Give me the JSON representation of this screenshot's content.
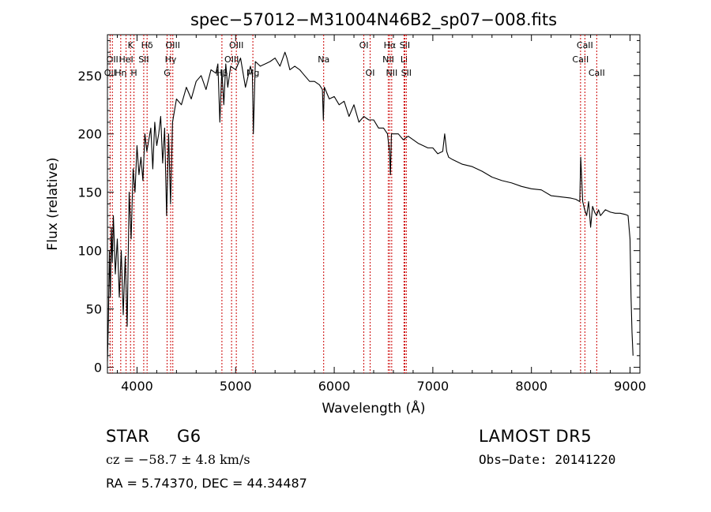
{
  "chart_data": {
    "type": "line",
    "title": "spec−57012−M31004N46B2_sp07−008.fits",
    "xlabel": "Wavelength (Å)",
    "ylabel": "Flux (relative)",
    "xlim": [
      3700,
      9100
    ],
    "ylim": [
      -5,
      285
    ],
    "xticks": [
      4000,
      5000,
      6000,
      7000,
      8000,
      9000
    ],
    "yticks": [
      0,
      50,
      100,
      150,
      200,
      250
    ],
    "grid": false,
    "series": [
      {
        "values_x": [
          3700,
          3710,
          3720,
          3730,
          3740,
          3750,
          3760,
          3780,
          3800,
          3820,
          3840,
          3860,
          3880,
          3900,
          3920,
          3940,
          3960,
          3980,
          4000,
          4020,
          4040,
          4060,
          4080,
          4100,
          4120,
          4140,
          4160,
          4180,
          4200,
          4220,
          4240,
          4260,
          4280,
          4300,
          4320,
          4340,
          4360,
          4380,
          4400,
          4450,
          4500,
          4550,
          4600,
          4650,
          4700,
          4750,
          4800,
          4820,
          4840,
          4860,
          4880,
          4900,
          4920,
          4950,
          5000,
          5050,
          5100,
          5150,
          5170,
          5180,
          5200,
          5250,
          5300,
          5350,
          5400,
          5450,
          5500,
          5520,
          5550,
          5600,
          5650,
          5700,
          5750,
          5800,
          5850,
          5880,
          5890,
          5900,
          5950,
          6000,
          6050,
          6100,
          6150,
          6200,
          6250,
          6300,
          6350,
          6400,
          6450,
          6500,
          6540,
          6560,
          6570,
          6580,
          6600,
          6650,
          6700,
          6750,
          6800,
          6850,
          6900,
          6950,
          7000,
          7050,
          7100,
          7120,
          7140,
          7160,
          7200,
          7250,
          7300,
          7400,
          7500,
          7600,
          7700,
          7800,
          7900,
          8000,
          8100,
          8200,
          8300,
          8400,
          8450,
          8490,
          8500,
          8520,
          8540,
          8560,
          8580,
          8600,
          8620,
          8640,
          8660,
          8680,
          8700,
          8750,
          8800,
          8850,
          8900,
          8950,
          8980,
          9000,
          9010,
          9020,
          9030
        ],
        "values_y": [
          5,
          40,
          100,
          60,
          120,
          90,
          130,
          80,
          110,
          60,
          100,
          45,
          95,
          35,
          150,
          110,
          170,
          150,
          190,
          165,
          180,
          160,
          200,
          185,
          195,
          205,
          170,
          210,
          190,
          200,
          215,
          175,
          205,
          130,
          200,
          140,
          210,
          220,
          230,
          225,
          240,
          230,
          245,
          250,
          238,
          255,
          252,
          260,
          210,
          255,
          225,
          260,
          240,
          258,
          255,
          265,
          240,
          258,
          250,
          200,
          262,
          258,
          260,
          262,
          265,
          258,
          270,
          265,
          255,
          258,
          255,
          250,
          245,
          245,
          242,
          238,
          212,
          240,
          230,
          232,
          225,
          228,
          215,
          225,
          210,
          215,
          212,
          212,
          205,
          205,
          200,
          185,
          165,
          200,
          200,
          200,
          195,
          198,
          195,
          192,
          190,
          188,
          188,
          183,
          185,
          200,
          185,
          180,
          178,
          176,
          174,
          172,
          168,
          163,
          160,
          158,
          155,
          153,
          152,
          147,
          146,
          145,
          144,
          142,
          180,
          142,
          135,
          130,
          142,
          120,
          138,
          133,
          130,
          135,
          130,
          135,
          133,
          132,
          132,
          131,
          130,
          110,
          60,
          30,
          10
        ],
        "name": ""
      }
    ],
    "annotations": [
      {
        "line": 3727,
        "label": "OII",
        "row": 2
      },
      {
        "line": 3750,
        "label": "OII",
        "row": 1
      },
      {
        "line": 3835,
        "label": "Hη",
        "row": 2
      },
      {
        "line": 3889,
        "label": "HeI",
        "row": 1
      },
      {
        "line": 3934,
        "label": "K",
        "row": 0
      },
      {
        "line": 3969,
        "label": "H",
        "row": 2
      },
      {
        "line": 4102,
        "label": "Hδ",
        "row": 0
      },
      {
        "line": 4068,
        "label": "SII",
        "row": 1
      },
      {
        "line": 4305,
        "label": "G",
        "row": 2
      },
      {
        "line": 4341,
        "label": "Hγ",
        "row": 1
      },
      {
        "line": 4363,
        "label": "OIII",
        "row": 0
      },
      {
        "line": 4861,
        "label": "Hβ",
        "row": 2
      },
      {
        "line": 4959,
        "label": "OIII",
        "row": 1
      },
      {
        "line": 5007,
        "label": "OIII",
        "row": 0
      },
      {
        "line": 5175,
        "label": "Mg",
        "row": 2
      },
      {
        "line": 5893,
        "label": "Na",
        "row": 1
      },
      {
        "line": 6300,
        "label": "OI",
        "row": 0
      },
      {
        "line": 6364,
        "label": "OI",
        "row": 2
      },
      {
        "line": 6548,
        "label": "NII",
        "row": 1
      },
      {
        "line": 6563,
        "label": "Hα",
        "row": 0
      },
      {
        "line": 6583,
        "label": "NII",
        "row": 2
      },
      {
        "line": 6708,
        "label": "Li",
        "row": 1
      },
      {
        "line": 6716,
        "label": "SII",
        "row": 0
      },
      {
        "line": 6731,
        "label": "SII",
        "row": 2
      },
      {
        "line": 8498,
        "label": "CaII",
        "row": 1
      },
      {
        "line": 8542,
        "label": "CaII",
        "row": 0
      },
      {
        "line": 8662,
        "label": "CaII",
        "row": 2
      }
    ]
  },
  "info": {
    "class_label": "STAR",
    "subclass": "G6",
    "survey": "LAMOST DR5",
    "cz_text": "cz = −58.7 ± 4.8 km/s",
    "obs_date": "Obs−Date: 20141220",
    "coords": "RA =   5.74370, DEC =  44.34487"
  },
  "colors": {
    "line": "#000000",
    "marker": "#cc0000"
  }
}
